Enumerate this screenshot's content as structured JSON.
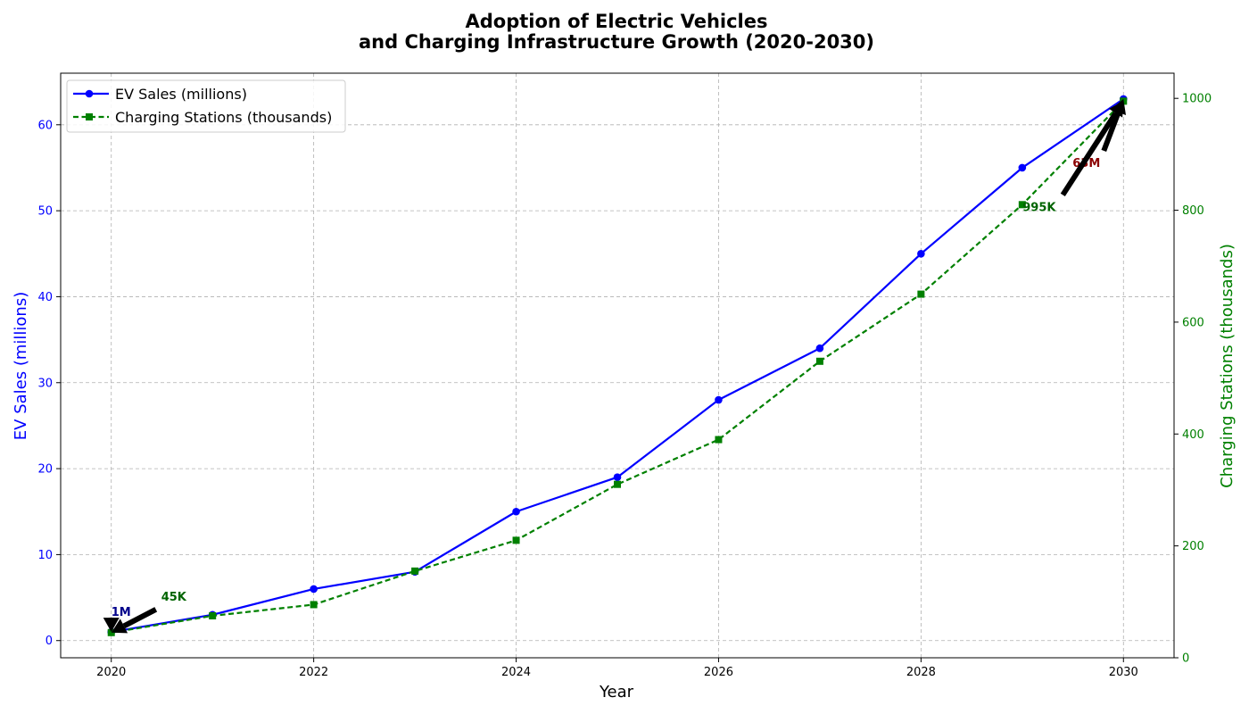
{
  "chart_data": {
    "type": "line",
    "title_lines": [
      "Adoption of Electric Vehicles",
      "and Charging Infrastructure Growth (2020-2030)"
    ],
    "xlabel": "Year",
    "ylabel_left": "EV Sales (millions)",
    "ylabel_right": "Charging Stations (thousands)",
    "x": [
      2020,
      2021,
      2022,
      2023,
      2024,
      2025,
      2026,
      2027,
      2028,
      2029,
      2030
    ],
    "x_ticks": [
      "2020",
      "2022",
      "2024",
      "2026",
      "2028",
      "2030"
    ],
    "xlim": [
      2019.5,
      2030.5
    ],
    "ylim_left": [
      -2,
      66
    ],
    "ylim_right": [
      0,
      1045
    ],
    "y_ticks_left": [
      "0",
      "10",
      "20",
      "30",
      "40",
      "50",
      "60"
    ],
    "y_ticks_right": [
      "0",
      "200",
      "400",
      "600",
      "800",
      "1000"
    ],
    "grid": true,
    "legend_position": "top-left",
    "series": [
      {
        "name": "EV Sales (millions)",
        "axis": "left",
        "color": "#0000ff",
        "marker": "circle",
        "line_style": "solid",
        "values": [
          1,
          3,
          6,
          8,
          15,
          19,
          28,
          34,
          45,
          55,
          63
        ]
      },
      {
        "name": "Charging Stations (thousands)",
        "axis": "right",
        "color": "#008000",
        "marker": "square",
        "line_style": "dashed",
        "values": [
          45,
          75,
          95,
          155,
          210,
          310,
          390,
          530,
          650,
          810,
          995
        ]
      }
    ],
    "annotations": [
      {
        "text": "1M",
        "x": 2020,
        "y": 1,
        "axis": "left",
        "color": "#00008b"
      },
      {
        "text": "45K",
        "x": 2020,
        "y": 45,
        "axis": "right",
        "color": "#006400"
      },
      {
        "text": "63M",
        "x": 2030,
        "y": 63,
        "axis": "left",
        "color": "#8b0000"
      },
      {
        "text": "995K",
        "x": 2030,
        "y": 995,
        "axis": "right",
        "color": "#006400"
      }
    ]
  }
}
